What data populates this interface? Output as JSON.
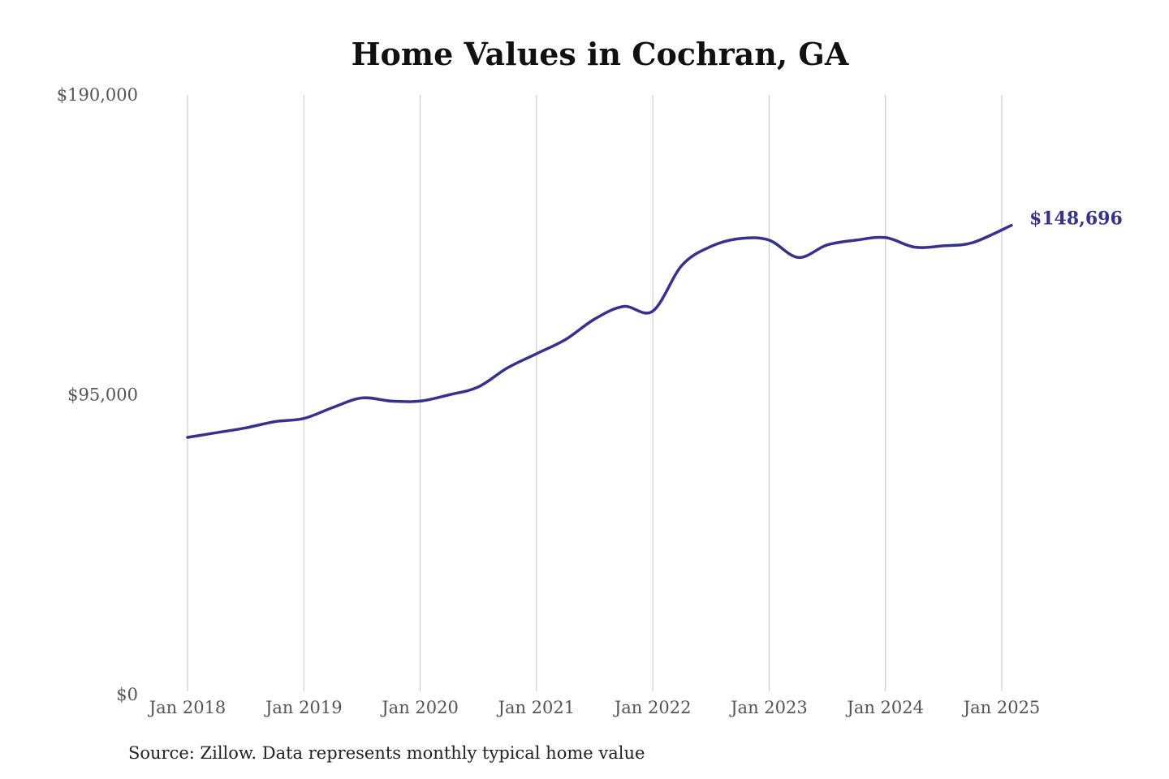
{
  "chart_data": {
    "type": "line",
    "title": "Home Values in Cochran, GA",
    "source_note": "Source: Zillow. Data represents monthly typical home value",
    "xlabel": "",
    "ylabel": "",
    "ylim": [
      0,
      190000
    ],
    "y_ticks": [
      {
        "value": 0,
        "label": "$0"
      },
      {
        "value": 95000,
        "label": "$95,000"
      },
      {
        "value": 190000,
        "label": "$190,000"
      }
    ],
    "x_ticks": [
      {
        "value": "2018-01",
        "label": "Jan 2018"
      },
      {
        "value": "2019-01",
        "label": "Jan 2019"
      },
      {
        "value": "2020-01",
        "label": "Jan 2020"
      },
      {
        "value": "2021-01",
        "label": "Jan 2021"
      },
      {
        "value": "2022-01",
        "label": "Jan 2022"
      },
      {
        "value": "2023-01",
        "label": "Jan 2023"
      },
      {
        "value": "2024-01",
        "label": "Jan 2024"
      },
      {
        "value": "2025-01",
        "label": "Jan 2025"
      }
    ],
    "grid": "vertical",
    "line_color": "#34318f",
    "end_label": "$148,696",
    "series": [
      {
        "x": [
          "2018-01",
          "2018-04",
          "2018-07",
          "2018-10",
          "2019-01",
          "2019-04",
          "2019-07",
          "2019-10",
          "2020-01",
          "2020-04",
          "2020-07",
          "2020-10",
          "2021-01",
          "2021-04",
          "2021-07",
          "2021-10",
          "2022-01",
          "2022-04",
          "2022-07",
          "2022-10",
          "2023-01",
          "2023-04",
          "2023-07",
          "2023-10",
          "2024-01",
          "2024-04",
          "2024-07",
          "2024-10",
          "2025-02"
        ],
        "values": [
          81500,
          83000,
          84500,
          86500,
          87500,
          91000,
          94000,
          93000,
          93000,
          95000,
          97500,
          103500,
          108000,
          112500,
          119000,
          123000,
          121500,
          136000,
          142000,
          144500,
          144000,
          138500,
          142500,
          144000,
          144800,
          141800,
          142200,
          143200,
          148696
        ]
      }
    ]
  }
}
